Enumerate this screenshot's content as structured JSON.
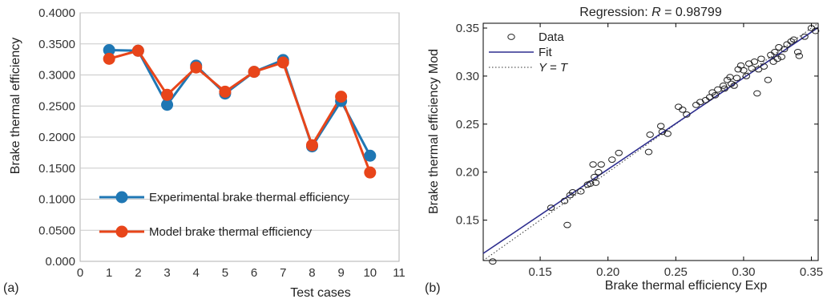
{
  "chart_data": [
    {
      "type": "line",
      "panel_label": "(a)",
      "xlabel": "Test cases",
      "ylabel": "Brake thermal efficiency",
      "xlim": [
        0,
        11
      ],
      "ylim": [
        0,
        0.4
      ],
      "x_ticks": [
        "0",
        "1",
        "2",
        "3",
        "4",
        "5",
        "6",
        "7",
        "8",
        "9",
        "10",
        "11"
      ],
      "y_ticks": [
        "0.000",
        "0.0500",
        "0.1000",
        "0.1500",
        "0.2000",
        "0.2500",
        "0.3000",
        "0.3500",
        "0.4000"
      ],
      "grid": true,
      "legend_position": "bottom-right",
      "x": [
        1,
        2,
        3,
        4,
        5,
        6,
        7,
        8,
        9,
        10
      ],
      "series": [
        {
          "name": "Experimental brake thermal efficiency",
          "color": "#1f77b4",
          "values": [
            0.34,
            0.339,
            0.252,
            0.315,
            0.27,
            0.305,
            0.324,
            0.185,
            0.258,
            0.17
          ]
        },
        {
          "name": "Model brake thermal efficiency",
          "color": "#e8451a",
          "values": [
            0.326,
            0.339,
            0.268,
            0.312,
            0.273,
            0.305,
            0.32,
            0.187,
            0.265,
            0.143
          ]
        }
      ]
    },
    {
      "type": "scatter",
      "panel_label": "(b)",
      "title": "Regression: R = 0.98799",
      "title_prefix": "Regression: ",
      "title_var": "R",
      "title_suffix": " = 0.98799",
      "xlabel": "Brake thermal efficiency  Exp",
      "ylabel": "Brake thermal efficiency Mod",
      "xlim": [
        0.108,
        0.355
      ],
      "ylim": [
        0.108,
        0.355
      ],
      "x_ticks": [
        "0.15",
        "0.20",
        "0.25",
        "0.30",
        "0.35"
      ],
      "y_ticks": [
        "0.15",
        "0.20",
        "0.25",
        "0.30",
        "0.35"
      ],
      "grid": false,
      "legend_position": "top-left",
      "legend": {
        "data": "Data",
        "fit": "Fit",
        "identity": "Y = T"
      },
      "fit_line": {
        "slope": 0.952,
        "intercept": 0.0126,
        "color": "#2e2e8f"
      },
      "points": [
        [
          0.115,
          0.107
        ],
        [
          0.158,
          0.163
        ],
        [
          0.168,
          0.17
        ],
        [
          0.17,
          0.145
        ],
        [
          0.172,
          0.176
        ],
        [
          0.174,
          0.179
        ],
        [
          0.18,
          0.18
        ],
        [
          0.185,
          0.187
        ],
        [
          0.187,
          0.188
        ],
        [
          0.189,
          0.208
        ],
        [
          0.19,
          0.195
        ],
        [
          0.191,
          0.189
        ],
        [
          0.193,
          0.2
        ],
        [
          0.195,
          0.208
        ],
        [
          0.203,
          0.213
        ],
        [
          0.208,
          0.22
        ],
        [
          0.23,
          0.221
        ],
        [
          0.231,
          0.239
        ],
        [
          0.239,
          0.248
        ],
        [
          0.24,
          0.242
        ],
        [
          0.244,
          0.24
        ],
        [
          0.252,
          0.268
        ],
        [
          0.255,
          0.265
        ],
        [
          0.258,
          0.26
        ],
        [
          0.265,
          0.27
        ],
        [
          0.268,
          0.273
        ],
        [
          0.272,
          0.275
        ],
        [
          0.275,
          0.278
        ],
        [
          0.277,
          0.283
        ],
        [
          0.279,
          0.28
        ],
        [
          0.281,
          0.286
        ],
        [
          0.285,
          0.29
        ],
        [
          0.286,
          0.287
        ],
        [
          0.288,
          0.296
        ],
        [
          0.29,
          0.299
        ],
        [
          0.291,
          0.292
        ],
        [
          0.293,
          0.29
        ],
        [
          0.295,
          0.298
        ],
        [
          0.296,
          0.307
        ],
        [
          0.298,
          0.311
        ],
        [
          0.3,
          0.306
        ],
        [
          0.302,
          0.3
        ],
        [
          0.304,
          0.313
        ],
        [
          0.306,
          0.308
        ],
        [
          0.308,
          0.315
        ],
        [
          0.31,
          0.282
        ],
        [
          0.311,
          0.307
        ],
        [
          0.313,
          0.318
        ],
        [
          0.315,
          0.31
        ],
        [
          0.318,
          0.296
        ],
        [
          0.32,
          0.322
        ],
        [
          0.322,
          0.315
        ],
        [
          0.323,
          0.325
        ],
        [
          0.325,
          0.318
        ],
        [
          0.326,
          0.33
        ],
        [
          0.328,
          0.32
        ],
        [
          0.33,
          0.328
        ],
        [
          0.332,
          0.333
        ],
        [
          0.335,
          0.336
        ],
        [
          0.337,
          0.338
        ],
        [
          0.34,
          0.325
        ],
        [
          0.341,
          0.321
        ],
        [
          0.345,
          0.341
        ],
        [
          0.35,
          0.35
        ],
        [
          0.353,
          0.347
        ]
      ]
    }
  ]
}
